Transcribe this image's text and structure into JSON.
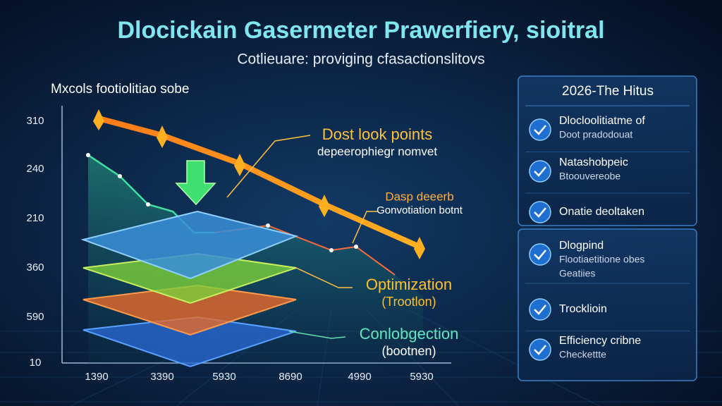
{
  "header": {
    "title": "Dlocickain Gasermeter Prawerfiery, sioitral",
    "subtitle": "Cotlieuare: proviging cfasactionslitovs"
  },
  "chart": {
    "label": "Mxcols footiolitiao sobe",
    "y_labels": [
      "310",
      "240",
      "210",
      "360",
      "590",
      "10"
    ],
    "x_labels": [
      "1390",
      "3390",
      "5930",
      "8690",
      "4990",
      "5930"
    ],
    "annotations": [
      {
        "title": "Dost look points",
        "subtitle": "depeerophiegr nomvet"
      },
      {
        "title": "Dasp deeerb",
        "subtitle": "Gonvotiation botnt"
      },
      {
        "title": "Optimization",
        "subtitle": "(Trootlon)"
      },
      {
        "title": "Conlobgection",
        "subtitle": "(bootnen)"
      }
    ]
  },
  "panel": {
    "title": "2026-The Hitus",
    "groups": [
      {
        "items": [
          {
            "lines": [
              "Dlocloolitiatme of",
              "Doot pradodouat"
            ]
          },
          {
            "lines": [
              "Natashobpeic",
              "Btoouvereobe"
            ]
          },
          {
            "lines": [
              "Onatie deoltaken"
            ]
          }
        ]
      },
      {
        "items": [
          {
            "lines": [
              "Dlogpind",
              "Flootiaetitione obes",
              "Geatiies"
            ]
          },
          {
            "lines": [
              "Trocklioin"
            ]
          },
          {
            "lines": [
              "Efficiency cribne",
              "Checkettte"
            ]
          }
        ]
      }
    ]
  }
}
